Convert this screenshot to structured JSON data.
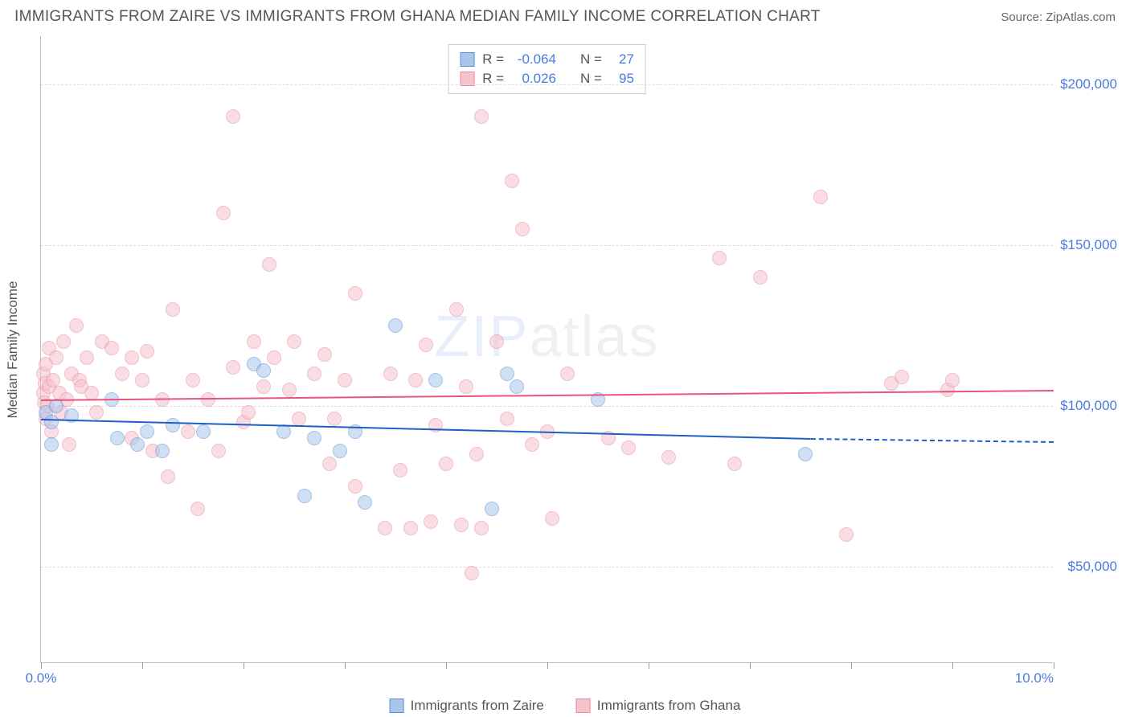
{
  "title": "IMMIGRANTS FROM ZAIRE VS IMMIGRANTS FROM GHANA MEDIAN FAMILY INCOME CORRELATION CHART",
  "source_label": "Source: ",
  "source_name": "ZipAtlas.com",
  "watermark": {
    "part1": "ZIP",
    "part2": "atlas"
  },
  "yaxis_title": "Median Family Income",
  "chart": {
    "type": "scatter",
    "background_color": "#ffffff",
    "grid_color": "#dddddd",
    "axis_color": "#bbbbbb",
    "tick_label_color": "#4a7ae0",
    "axis_title_color": "#555555",
    "xlim": [
      0.0,
      10.0
    ],
    "ylim": [
      20000,
      215000
    ],
    "xticks": [
      0.0,
      1.0,
      2.0,
      3.0,
      4.0,
      5.0,
      6.0,
      7.0,
      8.0,
      9.0,
      10.0
    ],
    "ygrid": [
      50000,
      100000,
      150000,
      200000
    ],
    "xtick_label_left": "0.0%",
    "xtick_label_right": "10.0%",
    "ytick_labels": {
      "50000": "$50,000",
      "100000": "$100,000",
      "150000": "$150,000",
      "200000": "$200,000"
    },
    "marker_radius": 9,
    "marker_stroke_width": 1.5,
    "label_fontsize": 17,
    "title_fontsize": 19
  },
  "series": [
    {
      "name": "Immigrants from Zaire",
      "legend_label": "Immigrants from Zaire",
      "R_label": "R =",
      "R_value": "-0.064",
      "N_label": "N =",
      "N_value": "27",
      "fill_color": "#a9c5ec",
      "stroke_color": "#5a8fd6",
      "line_color": "#1f5fc4",
      "trend": {
        "x0": 0.0,
        "y0": 96000,
        "x1": 7.6,
        "y1": 90000,
        "dash_x1": 10.0,
        "dash_y1": 89000
      },
      "points": [
        [
          0.05,
          98000
        ],
        [
          0.1,
          95000
        ],
        [
          0.15,
          100000
        ],
        [
          0.1,
          88000
        ],
        [
          0.3,
          97000
        ],
        [
          0.7,
          102000
        ],
        [
          0.75,
          90000
        ],
        [
          0.95,
          88000
        ],
        [
          1.05,
          92000
        ],
        [
          1.2,
          86000
        ],
        [
          1.3,
          94000
        ],
        [
          1.6,
          92000
        ],
        [
          2.1,
          113000
        ],
        [
          2.2,
          111000
        ],
        [
          2.4,
          92000
        ],
        [
          2.6,
          72000
        ],
        [
          2.7,
          90000
        ],
        [
          2.95,
          86000
        ],
        [
          3.1,
          92000
        ],
        [
          3.2,
          70000
        ],
        [
          3.5,
          125000
        ],
        [
          3.9,
          108000
        ],
        [
          4.45,
          68000
        ],
        [
          4.6,
          110000
        ],
        [
          4.7,
          106000
        ],
        [
          5.5,
          102000
        ],
        [
          7.55,
          85000
        ]
      ]
    },
    {
      "name": "Immigrants from Ghana",
      "legend_label": "Immigrants from Ghana",
      "R_label": "R =",
      "R_value": "0.026",
      "N_label": "N =",
      "N_value": "95",
      "fill_color": "#f6c2cc",
      "stroke_color": "#e88aa0",
      "line_color": "#e75480",
      "trend": {
        "x0": 0.0,
        "y0": 102000,
        "x1": 10.0,
        "y1": 105000
      },
      "points": [
        [
          0.02,
          110000
        ],
        [
          0.02,
          104000
        ],
        [
          0.03,
          101000
        ],
        [
          0.04,
          107000
        ],
        [
          0.05,
          113000
        ],
        [
          0.05,
          96000
        ],
        [
          0.06,
          100000
        ],
        [
          0.08,
          106000
        ],
        [
          0.08,
          118000
        ],
        [
          0.1,
          92000
        ],
        [
          0.12,
          108000
        ],
        [
          0.15,
          115000
        ],
        [
          0.18,
          104000
        ],
        [
          0.2,
          98000
        ],
        [
          0.22,
          120000
        ],
        [
          0.25,
          102000
        ],
        [
          0.28,
          88000
        ],
        [
          0.3,
          110000
        ],
        [
          0.35,
          125000
        ],
        [
          0.38,
          108000
        ],
        [
          0.4,
          106000
        ],
        [
          0.45,
          115000
        ],
        [
          0.5,
          104000
        ],
        [
          0.55,
          98000
        ],
        [
          0.6,
          120000
        ],
        [
          0.7,
          118000
        ],
        [
          0.8,
          110000
        ],
        [
          0.9,
          115000
        ],
        [
          0.9,
          90000
        ],
        [
          1.0,
          108000
        ],
        [
          1.05,
          117000
        ],
        [
          1.1,
          86000
        ],
        [
          1.2,
          102000
        ],
        [
          1.25,
          78000
        ],
        [
          1.3,
          130000
        ],
        [
          1.45,
          92000
        ],
        [
          1.5,
          108000
        ],
        [
          1.55,
          68000
        ],
        [
          1.65,
          102000
        ],
        [
          1.75,
          86000
        ],
        [
          1.8,
          160000
        ],
        [
          1.9,
          190000
        ],
        [
          1.9,
          112000
        ],
        [
          2.0,
          95000
        ],
        [
          2.05,
          98000
        ],
        [
          2.1,
          120000
        ],
        [
          2.2,
          106000
        ],
        [
          2.25,
          144000
        ],
        [
          2.3,
          115000
        ],
        [
          2.45,
          105000
        ],
        [
          2.5,
          120000
        ],
        [
          2.55,
          96000
        ],
        [
          2.7,
          110000
        ],
        [
          2.8,
          116000
        ],
        [
          2.85,
          82000
        ],
        [
          2.9,
          96000
        ],
        [
          3.0,
          108000
        ],
        [
          3.1,
          135000
        ],
        [
          3.1,
          75000
        ],
        [
          3.4,
          62000
        ],
        [
          3.45,
          110000
        ],
        [
          3.55,
          80000
        ],
        [
          3.65,
          62000
        ],
        [
          3.7,
          108000
        ],
        [
          3.8,
          119000
        ],
        [
          3.85,
          64000
        ],
        [
          3.9,
          94000
        ],
        [
          4.0,
          82000
        ],
        [
          4.1,
          130000
        ],
        [
          4.15,
          63000
        ],
        [
          4.2,
          106000
        ],
        [
          4.25,
          48000
        ],
        [
          4.3,
          85000
        ],
        [
          4.35,
          190000
        ],
        [
          4.35,
          62000
        ],
        [
          4.5,
          120000
        ],
        [
          4.6,
          96000
        ],
        [
          4.65,
          170000
        ],
        [
          4.75,
          155000
        ],
        [
          4.85,
          88000
        ],
        [
          5.0,
          92000
        ],
        [
          5.05,
          65000
        ],
        [
          5.2,
          110000
        ],
        [
          5.6,
          90000
        ],
        [
          5.8,
          87000
        ],
        [
          6.2,
          84000
        ],
        [
          6.7,
          146000
        ],
        [
          6.85,
          82000
        ],
        [
          7.1,
          140000
        ],
        [
          7.7,
          165000
        ],
        [
          7.95,
          60000
        ],
        [
          8.4,
          107000
        ],
        [
          8.5,
          109000
        ],
        [
          8.95,
          105000
        ],
        [
          9.0,
          108000
        ]
      ]
    }
  ]
}
